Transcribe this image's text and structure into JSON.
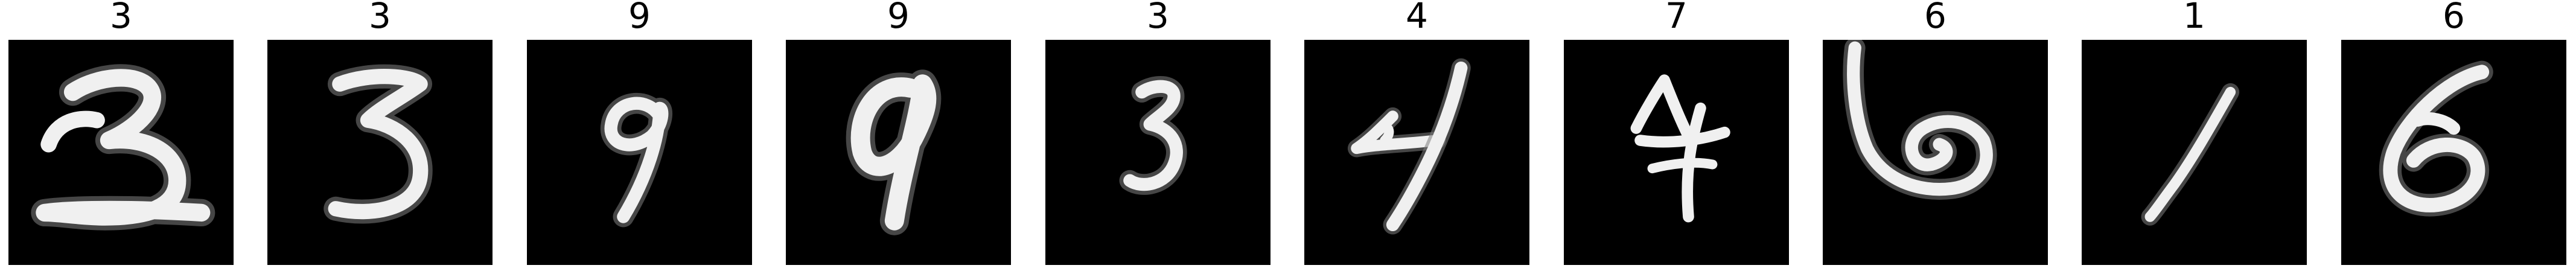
{
  "samples": [
    {
      "label": "3",
      "glyph": "three-digit-icon"
    },
    {
      "label": "3",
      "glyph": "three-digit-icon"
    },
    {
      "label": "9",
      "glyph": "nine-digit-icon"
    },
    {
      "label": "9",
      "glyph": "nine-digit-icon"
    },
    {
      "label": "3",
      "glyph": "three-digit-icon"
    },
    {
      "label": "4",
      "glyph": "four-digit-icon"
    },
    {
      "label": "7",
      "glyph": "seven-digit-icon"
    },
    {
      "label": "6",
      "glyph": "six-digit-icon"
    },
    {
      "label": "1",
      "glyph": "one-digit-icon"
    },
    {
      "label": "6",
      "glyph": "six-digit-icon"
    }
  ],
  "colors": {
    "image_background": "#000000",
    "digit_stroke": "#f0f0f0",
    "title_text": "#000000"
  }
}
